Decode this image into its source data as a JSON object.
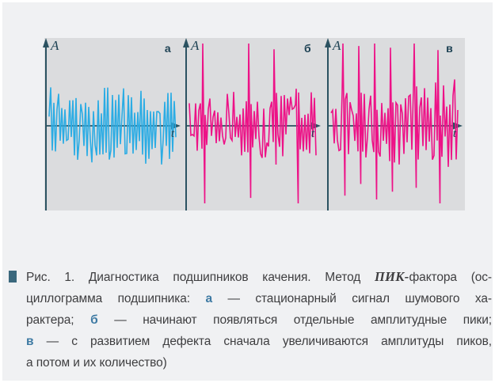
{
  "page": {
    "background": "#f0f1f3",
    "border_color": "#ffffff"
  },
  "figure": {
    "panel_bg": "#dbdcde",
    "axis_color": "#2b5261",
    "label_color": "#1e4254",
    "y_axis_label": "A",
    "x_axis_label": "t",
    "panels": [
      {
        "label": "а",
        "signal_color": "#2bace4",
        "seed": 7,
        "base_amp": 45,
        "amp_ramp": 0,
        "spikes": []
      },
      {
        "label": "б",
        "signal_color": "#ed1287",
        "seed": 13,
        "base_amp": 39,
        "amp_ramp": 0,
        "spikes": [
          {
            "p": 0.11,
            "up": 1.0,
            "down": 1.0
          },
          {
            "p": 0.475,
            "up": 1.0,
            "down": 0.93
          },
          {
            "p": 0.675,
            "up": 0.93,
            "down": 0.5
          },
          {
            "p": 0.85,
            "up": 0.45,
            "down": 1.0
          }
        ]
      },
      {
        "label": "в",
        "signal_color": "#ed1287",
        "seed": 29,
        "base_amp": 38,
        "amp_ramp": 16,
        "spikes": [
          {
            "p": 0.1,
            "up": 1.0,
            "down": 0.9
          },
          {
            "p": 0.225,
            "up": 0.97,
            "down": 0.75
          },
          {
            "p": 0.35,
            "up": 1.0,
            "down": 0.95
          },
          {
            "p": 0.475,
            "up": 0.95,
            "down": 0.85
          },
          {
            "p": 0.6625,
            "up": 1.0,
            "down": 0.8
          },
          {
            "p": 0.85,
            "up": 0.92,
            "down": 1.0
          }
        ]
      }
    ]
  },
  "caption": {
    "bullet_color": "#3a687d",
    "text_color": "#3e3e40",
    "accent_color": "#3e7aa3",
    "lines": [
      {
        "justify": true,
        "segments": [
          {
            "t": "Рис. 1. Диагностика подшипников качения. Метод ",
            "s": "n"
          },
          {
            "t": "ПИК-",
            "s": "bi"
          },
          {
            "t": "фактора (ос-",
            "s": "n"
          }
        ]
      },
      {
        "justify": true,
        "segments": [
          {
            "t": "циллограмма подшипника: ",
            "s": "n"
          },
          {
            "t": "а",
            "s": "a"
          },
          {
            "t": " — стационарный сигнал шумового ха-",
            "s": "n"
          }
        ]
      },
      {
        "justify": true,
        "segments": [
          {
            "t": "рактера; ",
            "s": "n"
          },
          {
            "t": "б",
            "s": "a"
          },
          {
            "t": " — начинают появляться отдельные амплитудные пики;",
            "s": "n"
          }
        ]
      },
      {
        "justify": true,
        "segments": [
          {
            "t": "в",
            "s": "a"
          },
          {
            "t": " — с развитием дефекта сначала увеличиваются амплитуды пиков,",
            "s": "n"
          }
        ]
      },
      {
        "justify": false,
        "segments": [
          {
            "t": "а потом и их количество)",
            "s": "n"
          }
        ]
      }
    ]
  }
}
